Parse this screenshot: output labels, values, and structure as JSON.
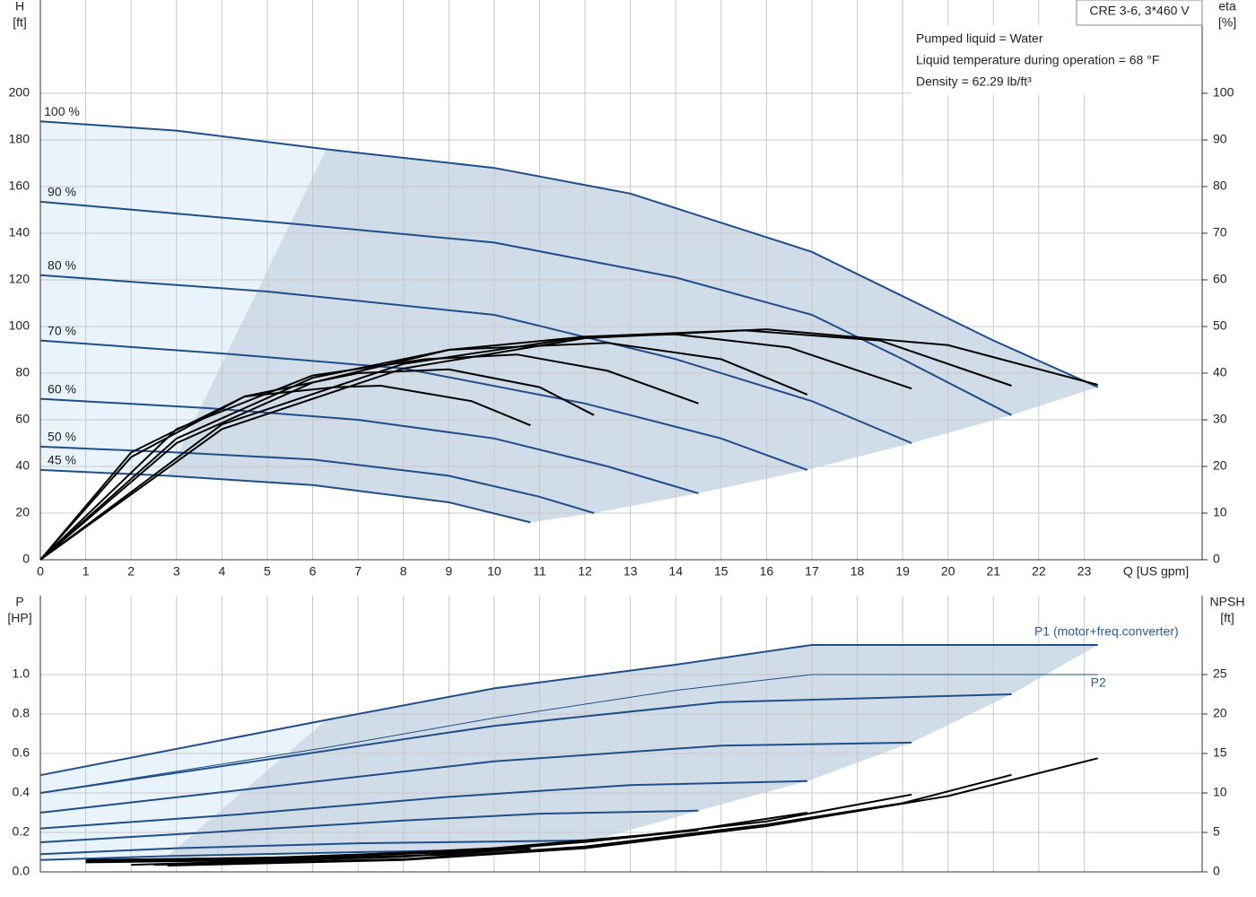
{
  "chart_data": [
    {
      "type": "line",
      "title": "CRE 3-6, 3*460 V",
      "annotations": [
        "Pumped liquid = Water",
        "Liquid temperature during operation = 68 °F",
        "Density = 62.29 lb/ft³"
      ],
      "x_label": "Q [US gpm]",
      "y_label": "H",
      "y_unit": "[ft]",
      "y2_label": "eta",
      "y2_unit": "[%]",
      "xlim": [
        0,
        25.6
      ],
      "xticks": [
        0,
        1,
        2,
        3,
        4,
        5,
        6,
        7,
        8,
        9,
        10,
        11,
        12,
        13,
        14,
        15,
        16,
        17,
        18,
        19,
        20,
        21,
        22,
        23
      ],
      "ylim": [
        0,
        240
      ],
      "yticks": [
        0,
        20,
        40,
        60,
        80,
        100,
        120,
        140,
        160,
        180,
        200
      ],
      "y2lim": [
        0,
        120
      ],
      "y2ticks": [
        0,
        10,
        20,
        30,
        40,
        50,
        60,
        70,
        80,
        90,
        100
      ],
      "grid": true,
      "series": [
        {
          "name": "100 %",
          "color": "#1f4e89",
          "width": 2,
          "x": [
            0,
            3,
            6.3,
            10,
            13,
            17,
            19,
            21,
            23.3
          ],
          "values": [
            188,
            184,
            176,
            168,
            157,
            132,
            113,
            94,
            74
          ]
        },
        {
          "name": "90 %",
          "color": "#1f4e89",
          "width": 2,
          "x": [
            0,
            5.6,
            10,
            14,
            17,
            19,
            21.4
          ],
          "values": [
            153.5,
            144,
            136,
            121,
            105,
            86,
            62
          ]
        },
        {
          "name": "80 %",
          "color": "#1f4e89",
          "width": 2,
          "x": [
            0,
            5,
            10,
            14,
            17,
            19.2
          ],
          "values": [
            122,
            115,
            105,
            86,
            68,
            50
          ]
        },
        {
          "name": "70 %",
          "color": "#1f4e89",
          "width": 2,
          "x": [
            0,
            4.3,
            8,
            12,
            15,
            16.9
          ],
          "values": [
            94,
            88,
            82,
            67,
            52,
            38.5
          ]
        },
        {
          "name": "60 %",
          "color": "#1f4e89",
          "width": 2,
          "x": [
            0,
            3.7,
            7,
            10,
            12.5,
            14.5
          ],
          "values": [
            69,
            65,
            60,
            52,
            40,
            28.5
          ]
        },
        {
          "name": "50 %",
          "color": "#1f4e89",
          "width": 2,
          "x": [
            0,
            3,
            6,
            9,
            11,
            12.2
          ],
          "values": [
            48.5,
            46,
            43,
            36,
            27,
            20
          ]
        },
        {
          "name": "45 %",
          "color": "#1f4e89",
          "width": 2,
          "x": [
            0,
            2.8,
            6,
            9,
            10.8
          ],
          "values": [
            38.5,
            36,
            32,
            24.6,
            16
          ]
        },
        {
          "axis": "y2",
          "color": "#000000",
          "width": 2,
          "x": [
            0,
            4,
            8,
            12,
            16,
            20,
            23.3
          ],
          "values": [
            0,
            28,
            41,
            47.5,
            49.4,
            46,
            37.5
          ]
        },
        {
          "axis": "y2",
          "color": "#000000",
          "width": 2,
          "x": [
            0,
            4,
            8,
            12,
            15.5,
            18.5,
            21.4
          ],
          "values": [
            0,
            29,
            42,
            47.8,
            49.2,
            47,
            37.3
          ]
        },
        {
          "axis": "y2",
          "color": "#000000",
          "width": 2,
          "x": [
            0,
            3,
            6,
            9,
            12,
            14,
            16.5,
            19.2
          ],
          "values": [
            0,
            25,
            38,
            45,
            47.8,
            48.3,
            45.5,
            36.7
          ]
        },
        {
          "axis": "y2",
          "color": "#000000",
          "width": 2,
          "x": [
            0,
            3,
            6,
            9,
            12.5,
            15,
            16.9
          ],
          "values": [
            0,
            26,
            39,
            45,
            46.5,
            43,
            35.4
          ]
        },
        {
          "axis": "y2",
          "color": "#000000",
          "width": 2,
          "x": [
            0,
            3,
            6,
            8.5,
            10.5,
            12.5,
            14.5
          ],
          "values": [
            0,
            28,
            39.5,
            43,
            44,
            40.5,
            33.5
          ]
        },
        {
          "axis": "y2",
          "color": "#000000",
          "width": 2,
          "x": [
            0,
            2,
            4.5,
            7,
            9,
            11,
            12.2
          ],
          "values": [
            0,
            22,
            35,
            40,
            40.8,
            37,
            31
          ]
        },
        {
          "axis": "y2",
          "color": "#000000",
          "width": 2,
          "x": [
            0,
            2,
            4.5,
            6.5,
            7.5,
            9.5,
            10.8
          ],
          "values": [
            0,
            23,
            35,
            37,
            37.3,
            34,
            28.8
          ]
        }
      ]
    },
    {
      "type": "line",
      "y_label": "P",
      "y_unit": "[HP]",
      "y2_label": "NPSH",
      "y2_unit": "[ft]",
      "xlim": [
        0,
        25.6
      ],
      "xticks": [
        0,
        1,
        2,
        3,
        4,
        5,
        6,
        7,
        8,
        9,
        10,
        11,
        12,
        13,
        14,
        15,
        16,
        17,
        18,
        19,
        20,
        21,
        22,
        23
      ],
      "ylim": [
        0,
        1.4
      ],
      "yticks": [
        {
          "value": 0,
          "label": "0.0"
        },
        0.2,
        0.4,
        0.6,
        0.8,
        {
          "value": 1,
          "label": "1.0"
        }
      ],
      "y2lim": [
        0,
        35
      ],
      "y2ticks": [
        0,
        5,
        10,
        15,
        20,
        25
      ],
      "grid": true,
      "series": [
        {
          "name": "P1 (motor+freq.converter)",
          "color": "#1f4e89",
          "width": 2,
          "x": [
            0,
            6.3,
            10,
            14,
            17,
            20,
            23.3
          ],
          "values": [
            0.49,
            0.77,
            0.93,
            1.05,
            1.15,
            1.15,
            1.15
          ]
        },
        {
          "color": "#1f4e89",
          "width": 2,
          "x": [
            0,
            5.6,
            10,
            15,
            21.4
          ],
          "values": [
            0.4,
            0.59,
            0.74,
            0.86,
            0.9
          ]
        },
        {
          "color": "#1f4e89",
          "width": 2,
          "x": [
            0,
            5,
            10,
            15,
            19.2
          ],
          "values": [
            0.3,
            0.43,
            0.56,
            0.64,
            0.655
          ]
        },
        {
          "color": "#1f4e89",
          "width": 2,
          "x": [
            0,
            4.3,
            9,
            13,
            16.9
          ],
          "values": [
            0.22,
            0.29,
            0.38,
            0.44,
            0.46
          ]
        },
        {
          "color": "#1f4e89",
          "width": 2,
          "x": [
            0,
            3.7,
            8,
            11,
            14.5
          ],
          "values": [
            0.15,
            0.2,
            0.26,
            0.295,
            0.31
          ]
        },
        {
          "color": "#1f4e89",
          "width": 2,
          "x": [
            0,
            3,
            7,
            12.2
          ],
          "values": [
            0.09,
            0.12,
            0.145,
            0.16
          ]
        },
        {
          "color": "#1f4e89",
          "width": 2,
          "x": [
            0,
            2.8,
            7,
            10.8
          ],
          "values": [
            0.06,
            0.08,
            0.1,
            0.115
          ]
        },
        {
          "name": "P2",
          "color": "#1f4e89",
          "width": 1,
          "x": [
            0,
            6.3,
            10,
            14,
            17,
            23.3
          ],
          "values": [
            0.4,
            0.63,
            0.78,
            0.92,
            1,
            1
          ]
        },
        {
          "axis": "y2",
          "color": "#000000",
          "width": 2,
          "x": [
            2.8,
            8,
            12,
            16,
            20,
            23.3
          ],
          "values": [
            0.8,
            1.5,
            3,
            5.8,
            9.6,
            14.4
          ]
        },
        {
          "axis": "y2",
          "color": "#000000",
          "width": 2,
          "x": [
            2.5,
            8,
            12,
            16,
            19,
            21.4
          ],
          "values": [
            0.9,
            1.6,
            3.2,
            6,
            8.7,
            12.3
          ]
        },
        {
          "axis": "y2",
          "color": "#000000",
          "width": 2,
          "x": [
            2,
            8,
            12,
            16,
            19.2
          ],
          "values": [
            0.9,
            1.9,
            3.8,
            6.4,
            9.8
          ]
        },
        {
          "axis": "y2",
          "color": "#000000",
          "width": 2,
          "x": [
            1.5,
            6,
            10,
            14,
            16.9
          ],
          "values": [
            1.5,
            1.9,
            3,
            5,
            7.5
          ]
        },
        {
          "axis": "y2",
          "color": "#000000",
          "width": 2,
          "x": [
            1,
            5,
            9,
            12,
            14.5
          ],
          "values": [
            1.5,
            1.8,
            2.6,
            3.8,
            5.3
          ]
        },
        {
          "axis": "y2",
          "color": "#000000",
          "width": 2,
          "x": [
            1,
            5,
            9,
            12.2
          ],
          "values": [
            1.3,
            1.6,
            2.5,
            3.9
          ]
        },
        {
          "axis": "y2",
          "color": "#000000",
          "width": 2,
          "x": [
            1,
            5,
            9,
            10.8
          ],
          "values": [
            1.2,
            1.5,
            2.2,
            3
          ]
        }
      ]
    }
  ]
}
